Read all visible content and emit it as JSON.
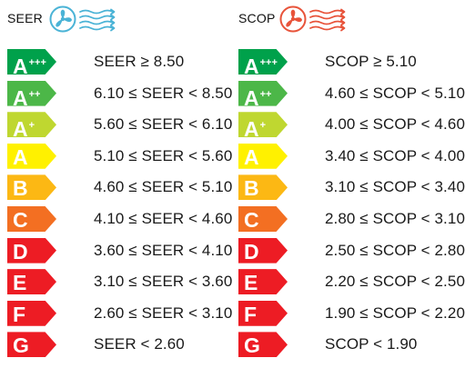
{
  "colors": {
    "seer_icon": "#4ab3d6",
    "scop_icon": "#e8533a",
    "class_colors": {
      "A+++": "#00a14b",
      "A++": "#4cb748",
      "A+": "#bfd730",
      "A": "#fff100",
      "B": "#fcb814",
      "C": "#f36f22",
      "D": "#ed1c24",
      "E": "#ed1c24",
      "F": "#ed1c24",
      "G": "#ed1c24"
    }
  },
  "seer": {
    "title": "SEER",
    "icons": [
      "fan-icon",
      "wind-icon"
    ],
    "rows": [
      {
        "letter": "A",
        "sup": "+++",
        "range": "SEER ≥ 8.50"
      },
      {
        "letter": "A",
        "sup": "++",
        "range": "6.10 ≤ SEER < 8.50"
      },
      {
        "letter": "A",
        "sup": "+",
        "range": "5.60 ≤ SEER < 6.10"
      },
      {
        "letter": "A",
        "sup": "",
        "range": "5.10 ≤ SEER < 5.60"
      },
      {
        "letter": "B",
        "sup": "",
        "range": "4.60 ≤ SEER < 5.10"
      },
      {
        "letter": "C",
        "sup": "",
        "range": "4.10 ≤ SEER < 4.60"
      },
      {
        "letter": "D",
        "sup": "",
        "range": "3.60 ≤ SEER < 4.10"
      },
      {
        "letter": "E",
        "sup": "",
        "range": "3.10 ≤ SEER < 3.60"
      },
      {
        "letter": "F",
        "sup": "",
        "range": "2.60 ≤ SEER < 3.10"
      },
      {
        "letter": "G",
        "sup": "",
        "range": "SEER < 2.60"
      }
    ]
  },
  "scop": {
    "title": "SCOP",
    "icons": [
      "fan-icon",
      "heat-wave-icon"
    ],
    "rows": [
      {
        "letter": "A",
        "sup": "+++",
        "range": "SCOP ≥ 5.10"
      },
      {
        "letter": "A",
        "sup": "++",
        "range": "4.60 ≤ SCOP < 5.10"
      },
      {
        "letter": "A",
        "sup": "+",
        "range": "4.00 ≤ SCOP < 4.60"
      },
      {
        "letter": "A",
        "sup": "",
        "range": "3.40 ≤ SCOP < 4.00"
      },
      {
        "letter": "B",
        "sup": "",
        "range": "3.10 ≤ SCOP < 3.40"
      },
      {
        "letter": "C",
        "sup": "",
        "range": "2.80 ≤ SCOP < 3.10"
      },
      {
        "letter": "D",
        "sup": "",
        "range": "2.50 ≤ SCOP < 2.80"
      },
      {
        "letter": "E",
        "sup": "",
        "range": "2.20 ≤ SCOP < 2.50"
      },
      {
        "letter": "F",
        "sup": "",
        "range": "1.90 ≤ SCOP < 2.20"
      },
      {
        "letter": "G",
        "sup": "",
        "range": "SCOP < 1.90"
      }
    ]
  }
}
